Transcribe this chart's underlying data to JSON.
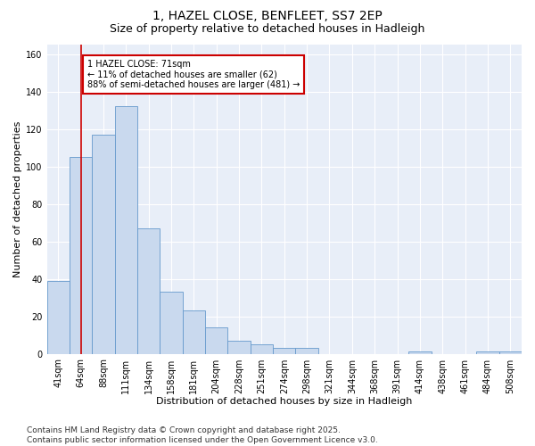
{
  "title": "1, HAZEL CLOSE, BENFLEET, SS7 2EP",
  "subtitle": "Size of property relative to detached houses in Hadleigh",
  "xlabel": "Distribution of detached houses by size in Hadleigh",
  "ylabel": "Number of detached properties",
  "footer_line1": "Contains HM Land Registry data © Crown copyright and database right 2025.",
  "footer_line2": "Contains public sector information licensed under the Open Government Licence v3.0.",
  "categories": [
    "41sqm",
    "64sqm",
    "88sqm",
    "111sqm",
    "134sqm",
    "158sqm",
    "181sqm",
    "204sqm",
    "228sqm",
    "251sqm",
    "274sqm",
    "298sqm",
    "321sqm",
    "344sqm",
    "368sqm",
    "391sqm",
    "414sqm",
    "438sqm",
    "461sqm",
    "484sqm",
    "508sqm"
  ],
  "bar_values": [
    39,
    105,
    117,
    132,
    67,
    33,
    23,
    14,
    7,
    5,
    3,
    3,
    0,
    0,
    0,
    0,
    1,
    0,
    0,
    1,
    1
  ],
  "bar_color": "#c9d9ee",
  "bar_edge_color": "#6699cc",
  "property_line_color": "#cc0000",
  "property_line_x": 1.0,
  "annotation_text_line1": "1 HAZEL CLOSE: 71sqm",
  "annotation_text_line2": "← 11% of detached houses are smaller (62)",
  "annotation_text_line3": "88% of semi-detached houses are larger (481) →",
  "annotation_box_facecolor": "#ffffff",
  "annotation_box_edgecolor": "#cc0000",
  "ylim": [
    0,
    165
  ],
  "yticks": [
    0,
    20,
    40,
    60,
    80,
    100,
    120,
    140,
    160
  ],
  "background_color": "#e8eef8",
  "grid_color": "#ffffff",
  "title_fontsize": 10,
  "subtitle_fontsize": 9,
  "ylabel_fontsize": 8,
  "xlabel_fontsize": 8,
  "tick_fontsize": 7,
  "annotation_fontsize": 7,
  "footer_fontsize": 6.5
}
